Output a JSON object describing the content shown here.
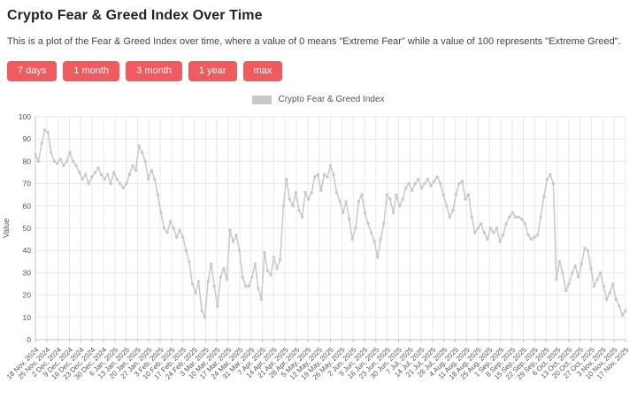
{
  "header": {
    "title": "Crypto Fear & Greed Index Over Time",
    "description": "This is a plot of the Fear & Greed Index over time, where a value of 0 means \"Extreme Fear\" while a value of 100 represents \"Extreme Greed\"."
  },
  "controls": {
    "button_color": "#ef5b5e",
    "range_buttons": [
      "7 days",
      "1 month",
      "3 month",
      "1 year",
      "max"
    ]
  },
  "chart_data": {
    "type": "line",
    "legend": "Crypto Fear & Greed Index",
    "legend_position": "top-center",
    "ylabel": "Value",
    "ylim": [
      0,
      100
    ],
    "ytick_step": 10,
    "grid": true,
    "line_color": "#c9c9c9",
    "marker": "circle",
    "x_range": [
      "18 Nov, 2024",
      "17 Nov, 2025"
    ],
    "x_tick_labels": [
      "18 Nov, 2024",
      "25 Nov, 2024",
      "2 Dec, 2024",
      "9 Dec, 2024",
      "16 Dec, 2024",
      "23 Dec, 2024",
      "30 Dec, 2024",
      "6 Jan, 2025",
      "13 Jan, 2025",
      "20 Jan, 2025",
      "27 Jan, 2025",
      "3 Feb, 2025",
      "10 Feb, 2025",
      "17 Feb, 2025",
      "24 Feb, 2025",
      "3 Mar, 2025",
      "10 Mar, 2025",
      "17 Mar, 2025",
      "24 Mar, 2025",
      "31 Mar, 2025",
      "7 Apr, 2025",
      "14 Apr, 2025",
      "21 Apr, 2025",
      "28 Apr, 2025",
      "5 May, 2025",
      "12 May, 2025",
      "19 May, 2025",
      "26 May, 2025",
      "2 Jun, 2025",
      "9 Jun, 2025",
      "16 Jun, 2025",
      "23 Jun, 2025",
      "30 Jun, 2025",
      "7 Jul, 2025",
      "14 Jul, 2025",
      "21 Jul, 2025",
      "28 Jul, 2025",
      "4 Aug, 2025",
      "11 Aug, 2025",
      "18 Aug, 2025",
      "25 Aug, 2025",
      "1 Sep, 2025",
      "8 Sep, 2025",
      "15 Sep, 2025",
      "22 Sep, 2025",
      "29 Sep, 2025",
      "6 Oct, 2025",
      "13 Oct, 2025",
      "20 Oct, 2025",
      "27 Oct, 2025",
      "3 Nov, 2025",
      "10 Nov, 2025",
      "17 Nov, 2025"
    ],
    "values": [
      83,
      80,
      88,
      94,
      93,
      84,
      80,
      79,
      81,
      78,
      80,
      84,
      80,
      78,
      75,
      72,
      74,
      70,
      73,
      75,
      77,
      74,
      72,
      74,
      70,
      75,
      72,
      70,
      68,
      70,
      74,
      78,
      76,
      87,
      84,
      80,
      72,
      76,
      72,
      65,
      57,
      50,
      48,
      53,
      50,
      46,
      49,
      46,
      40,
      35,
      25,
      21,
      26,
      13,
      10,
      26,
      34,
      24,
      15,
      28,
      32,
      27,
      49,
      44,
      47,
      40,
      28,
      24,
      24,
      28,
      34,
      23,
      18,
      39,
      31,
      29,
      37,
      32,
      36,
      60,
      72,
      63,
      60,
      66,
      58,
      55,
      66,
      63,
      66,
      73,
      74,
      67,
      74,
      73,
      78,
      74,
      66,
      62,
      57,
      62,
      54,
      45,
      50,
      62,
      65,
      57,
      52,
      48,
      44,
      37,
      45,
      52,
      65,
      63,
      57,
      65,
      60,
      63,
      68,
      70,
      67,
      70,
      72,
      68,
      70,
      72,
      69,
      71,
      73,
      70,
      65,
      60,
      55,
      58,
      65,
      70,
      71,
      63,
      65,
      55,
      48,
      50,
      52,
      48,
      45,
      50,
      48,
      50,
      44,
      47,
      52,
      55,
      57,
      55,
      55,
      54,
      52,
      47,
      45,
      46,
      47,
      55,
      64,
      72,
      74,
      70,
      27,
      35,
      30,
      22,
      25,
      30,
      33,
      28,
      34,
      41,
      40,
      32,
      24,
      27,
      30,
      24,
      18,
      21,
      25,
      18,
      15,
      11,
      13
    ]
  }
}
